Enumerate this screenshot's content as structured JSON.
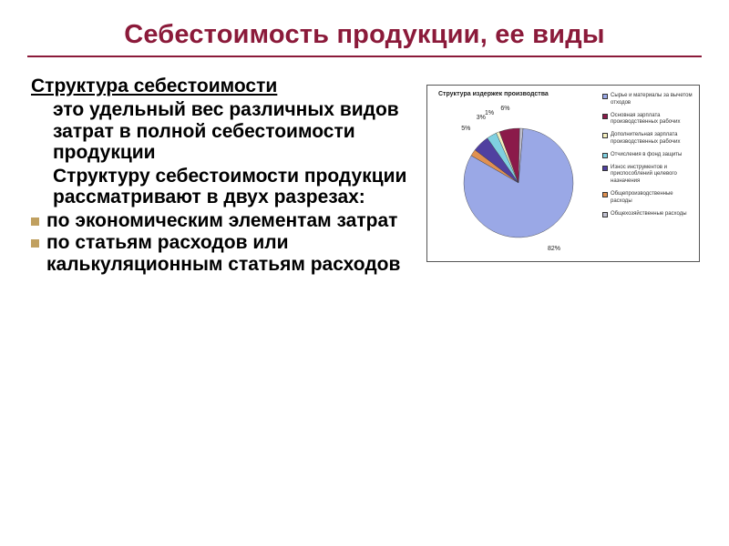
{
  "slide": {
    "title": "Себестоимость продукции, ее виды",
    "subtitle": "Структура себестоимости",
    "para1": "это удельный вес различных видов затрат в полной себестоимости продукции",
    "para2": "Структуру себестоимости продукции рассматривают в двух разрезах:",
    "bullets": [
      "по экономическим элементам затрат",
      "по статьям расходов или калькуляционным статьям расходов"
    ]
  },
  "chart": {
    "type": "pie",
    "title": "Структура издержек производства",
    "background_color": "#ffffff",
    "border_color": "#555555",
    "slices": [
      {
        "label": "Сырье и материалы за вычетом отходов",
        "value": 82,
        "color": "#9aa8e6",
        "callout": "82%"
      },
      {
        "label": "Основная зарплата производственных рабочих",
        "value": 6,
        "color": "#8b1a4a",
        "callout": "6%"
      },
      {
        "label": "Дополнительная зарплата производственных рабочих",
        "value": 1,
        "color": "#f5f0c0",
        "callout": "1%"
      },
      {
        "label": "Отчисления в фонд защиты",
        "value": 3,
        "color": "#7fd0e0",
        "callout": "3%"
      },
      {
        "label": "Износ инструментов и приспособлений целевого назначения",
        "value": 5,
        "color": "#5040a0",
        "callout": "5%"
      },
      {
        "label": "Общепроизводственные расходы",
        "value": 2,
        "color": "#e09050",
        "callout": ""
      },
      {
        "label": "Общехозяйственные расходы",
        "value": 1,
        "color": "#c0c0d0",
        "callout": ""
      }
    ],
    "label_fontsize": 7,
    "legend_fontsize": 6,
    "title_fontsize": 7
  },
  "colors": {
    "accent": "#8b1a3a",
    "bullet": "#c0a060",
    "text": "#000000"
  }
}
